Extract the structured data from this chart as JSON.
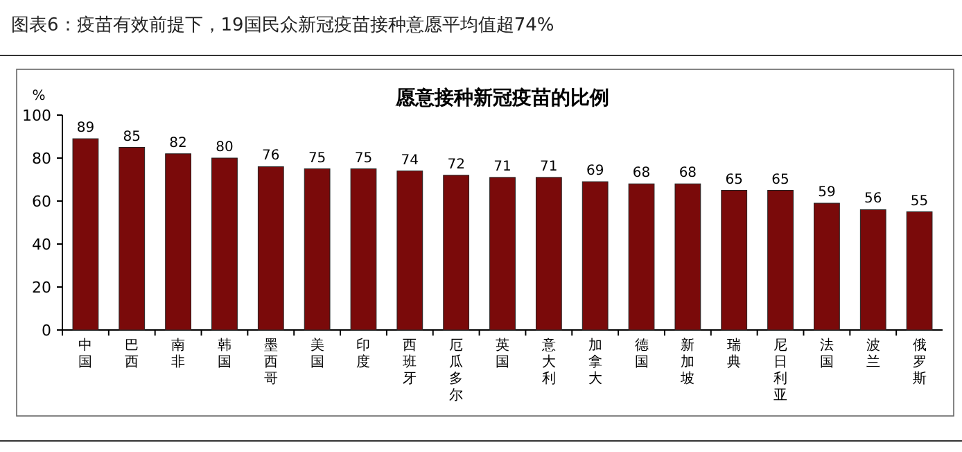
{
  "chart_data": {
    "type": "bar",
    "title": "愿意接种新冠疫苗的比例",
    "ylabel": "%",
    "annotations": [
      "图表6：疫苗有效前提下，19国民众新冠疫苗接种意愿平均值超74%"
    ],
    "categories": [
      "中国",
      "巴西",
      "南非",
      "韩国",
      "墨西哥",
      "美国",
      "印度",
      "西班牙",
      "厄瓜多尔",
      "英国",
      "意大利",
      "加拿大",
      "德国",
      "新加坡",
      "瑞典",
      "尼日利亚",
      "法国",
      "波兰",
      "俄罗斯"
    ],
    "values": [
      89,
      85,
      82,
      80,
      76,
      75,
      75,
      74,
      72,
      71,
      71,
      69,
      68,
      68,
      65,
      65,
      59,
      56,
      55
    ],
    "color": "#7a0a0a",
    "ylim": [
      0,
      100
    ],
    "yticks": [
      0,
      20,
      40,
      60,
      80,
      100
    ],
    "data_labels": true,
    "grid": false
  }
}
